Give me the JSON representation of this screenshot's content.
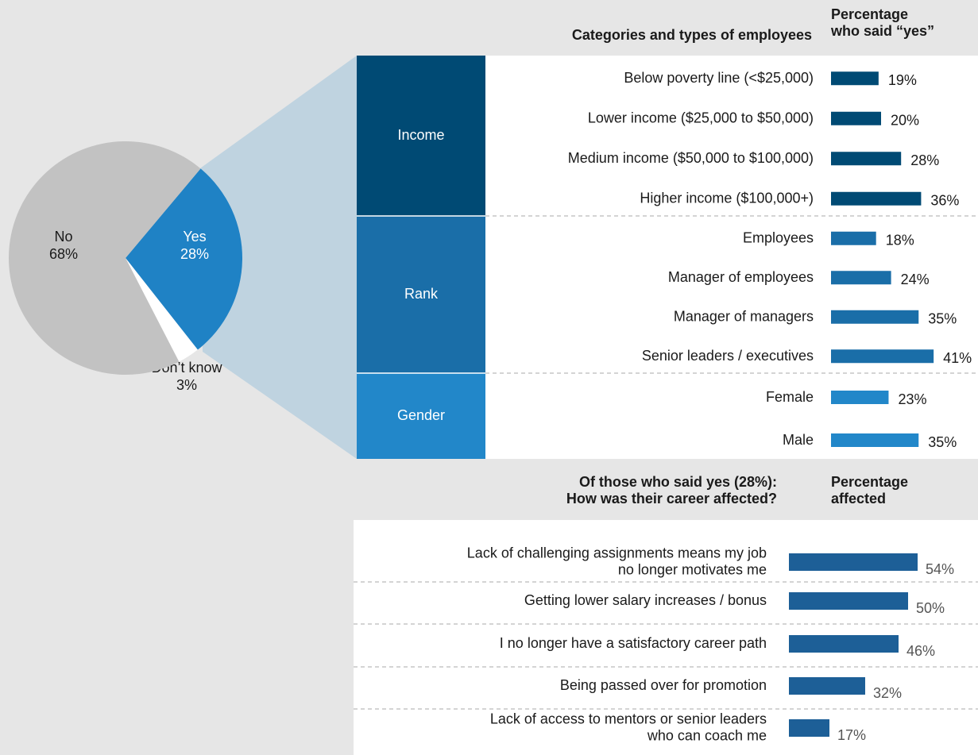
{
  "chart_data": [
    {
      "type": "pie",
      "categories": [
        "Yes",
        "Don’t know",
        "No"
      ],
      "values": [
        28,
        3,
        68
      ],
      "value_labels": [
        "28%",
        "3%",
        "68%"
      ],
      "colors": [
        "#1f82c5",
        "#ffffff",
        "#c2c2c2"
      ]
    },
    {
      "type": "grouped-bar",
      "title": "Categories and types of employees",
      "value_header": "Percentage\nwho said “yes”",
      "groups": [
        {
          "name": "Income",
          "color": "#004a74",
          "categories": [
            "Below poverty line (<$25,000)",
            "Lower income ($25,000 to $50,000)",
            "Medium income ($50,000 to $100,000)",
            "Higher income ($100,000+)"
          ],
          "values": [
            19,
            20,
            28,
            36
          ],
          "value_labels": [
            "19%",
            "20%",
            "28%",
            "36%"
          ]
        },
        {
          "name": "Rank",
          "color": "#1a6ea8",
          "categories": [
            "Employees",
            "Manager of employees",
            "Manager of managers",
            "Senior leaders / executives"
          ],
          "values": [
            18,
            24,
            35,
            41
          ],
          "value_labels": [
            "18%",
            "24%",
            "35%",
            "41%"
          ]
        },
        {
          "name": "Gender",
          "color": "#2287c9",
          "categories": [
            "Female",
            "Male"
          ],
          "values": [
            23,
            35
          ],
          "value_labels": [
            "23%",
            "35%"
          ]
        }
      ]
    },
    {
      "type": "bar",
      "title": "Of those who said yes (28%):\nHow was their career affected?",
      "value_header": "Percentage\naffected",
      "color": "#1d5f97",
      "categories": [
        "Lack of challenging assignments means my job\nno longer motivates me",
        "Getting lower salary increases / bonus",
        "I no longer have a satisfactory career path",
        "Being passed over for promotion",
        "Lack of access to mentors or senior leaders\nwho can coach me"
      ],
      "values": [
        54,
        50,
        46,
        32,
        17
      ],
      "value_labels": [
        "54%",
        "50%",
        "46%",
        "32%",
        "17%"
      ]
    }
  ]
}
